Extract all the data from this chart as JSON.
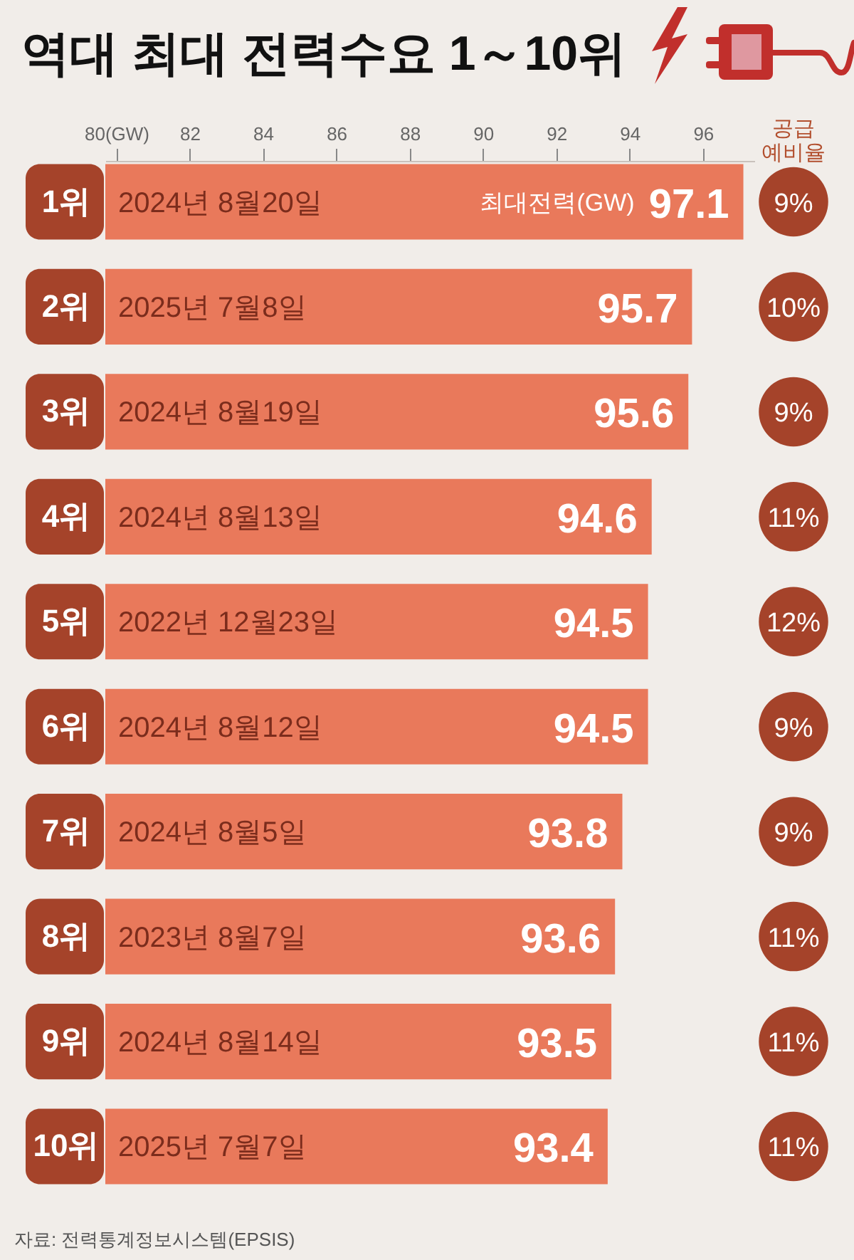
{
  "chart_data": {
    "type": "bar",
    "orientation": "horizontal",
    "title": "역대 최대 전력수요 1～10위",
    "categories": [
      "1위",
      "2위",
      "3위",
      "4위",
      "5위",
      "6위",
      "7위",
      "8위",
      "9위",
      "10위"
    ],
    "values": [
      97.1,
      95.7,
      95.6,
      94.6,
      94.5,
      94.5,
      93.8,
      93.6,
      93.5,
      93.4
    ],
    "color": "#e9795b",
    "xlim": [
      79.7,
      97.4
    ],
    "xticks": [
      {
        "value": 80,
        "label": "80(GW)"
      },
      82,
      84,
      86,
      88,
      90,
      92,
      94,
      96
    ],
    "data_labels": true,
    "annotations": [
      {
        "text": "2024년 8월20일",
        "y": "1위"
      },
      {
        "text": "2025년 7월8일",
        "y": "2위"
      },
      {
        "text": "2024년 8월19일",
        "y": "3위"
      },
      {
        "text": "2024년 8월13일",
        "y": "4위"
      },
      {
        "text": "2022년 12월23일",
        "y": "5위"
      },
      {
        "text": "2024년 8월12일",
        "y": "6위"
      },
      {
        "text": "2024년 8월5일",
        "y": "7위"
      },
      {
        "text": "2023년 8월7일",
        "y": "8위"
      },
      {
        "text": "2024년 8월14일",
        "y": "9위"
      },
      {
        "text": "2025년 7월7일",
        "y": "10위"
      },
      "공급 예비율",
      "최대전력(GW)",
      "9%",
      "10%",
      "9%",
      "11%",
      "12%",
      "9%",
      "9%",
      "11%",
      "11%",
      "11%",
      "자료: 전력통계정보시스템(EPSIS)"
    ]
  }
}
